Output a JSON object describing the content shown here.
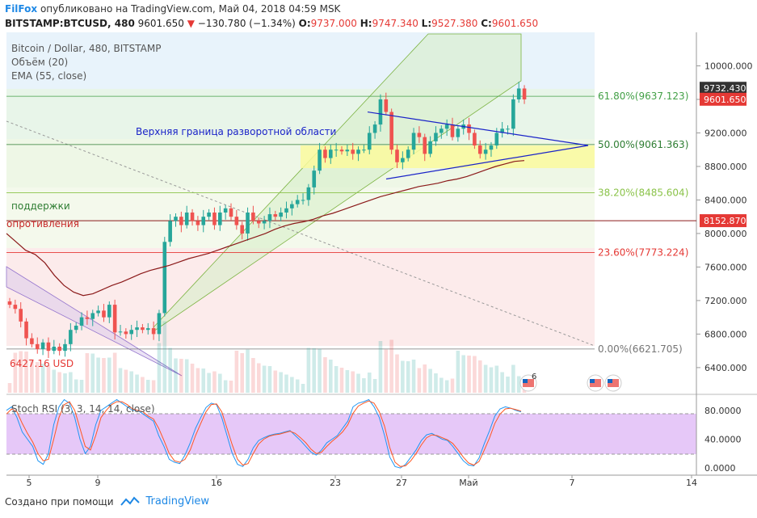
{
  "header": {
    "brand": "FilFox",
    "published": "опубликовано на TradingView.com, Май 04, 2018 04:59 MSK",
    "symbol": "BITSTAMP:BTCUSD, 480",
    "last": "9601.650",
    "change": "−130.780 (−1.34%)",
    "o_label": "O:",
    "o": "9737.000",
    "h_label": "H:",
    "h": "9747.340",
    "l_label": "L:",
    "l": "9527.380",
    "c_label": "C:",
    "c": "9601.650"
  },
  "legend": {
    "title": "Bitcoin / Dollar, 480, BITSTAMP",
    "volume": "Объём (20)",
    "ema": "EMA (55, close)",
    "stoch": "Stoch RSI (3, 3, 14, 14, close)"
  },
  "annotations": {
    "upper_boundary": "Верхняя граница разворотной области",
    "support": "поддержки",
    "resistance": "опротивления",
    "low_price": "6427.16 USD"
  },
  "footer": {
    "created_with": "Создано при помощи",
    "brand": "TradingView"
  },
  "events_badge": "6",
  "colors": {
    "up": "#26a69a",
    "down": "#ef5350",
    "ema": "#8b1a1a",
    "stoch_k": "#2196f3",
    "stoch_d": "#ff5722",
    "fib_618": "#43a047",
    "fib_50": "#2e7d32",
    "fib_382": "#8bc34a",
    "fib_236": "#e53935",
    "fib_0": "#757575",
    "triangle": "#1a23c8",
    "channel": "#7cb342"
  },
  "chart_data": [
    {
      "type": "candlestick",
      "title": "Bitcoin / Dollar, 480, BITSTAMP",
      "x_ticks": [
        "5",
        "9",
        "16",
        "23",
        "27",
        "Май",
        "7",
        "14"
      ],
      "y_ticks": [
        "10000.000",
        "9600.000",
        "9200.000",
        "8800.000",
        "8400.000",
        "8000.000",
        "7600.000",
        "7200.000",
        "6800.000",
        "6400.000"
      ],
      "ylim": [
        6100,
        10400
      ],
      "price_tags": [
        "9732.430",
        "9601.650",
        "8152.870"
      ],
      "fib_levels": [
        {
          "label": "61.80%(9637.123)",
          "value": 9637.123
        },
        {
          "label": "50.00%(9061.363)",
          "value": 9061.363
        },
        {
          "label": "38.20%(8485.604)",
          "value": 8485.604
        },
        {
          "label": "23.60%(7773.224)",
          "value": 7773.224
        },
        {
          "label": "0.00%(6621.705)",
          "value": 6621.705
        }
      ],
      "horizontal_line": 8152.87,
      "closes": [
        7150,
        7100,
        6950,
        6750,
        6680,
        6620,
        6700,
        6600,
        6650,
        6600,
        6680,
        6850,
        6900,
        7000,
        6980,
        7050,
        7080,
        7000,
        7150,
        6820,
        6830,
        6800,
        6850,
        6880,
        6850,
        6870,
        6800,
        7050,
        7900,
        8150,
        8200,
        8100,
        8250,
        8150,
        8100,
        8200,
        8250,
        8100,
        8250,
        8300,
        8200,
        8100,
        8000,
        8250,
        8150,
        8120,
        8150,
        8230,
        8200,
        8250,
        8300,
        8350,
        8400,
        8400,
        8550,
        8750,
        9000,
        8900,
        9000,
        9000,
        8980,
        9000,
        8950,
        9000,
        9000,
        9200,
        9300,
        9600,
        9450,
        9000,
        8850,
        8900,
        9000,
        9200,
        9150,
        8950,
        9100,
        9200,
        9250,
        9300,
        9150,
        9250,
        9300,
        9200,
        9050,
        8950,
        9000,
        9050,
        9200,
        9250,
        9250,
        9600,
        9730,
        9600
      ],
      "ema_55": [
        8000,
        7900,
        7800,
        7750,
        7650,
        7500,
        7380,
        7300,
        7260,
        7280,
        7330,
        7380,
        7420,
        7470,
        7520,
        7560,
        7590,
        7620,
        7660,
        7700,
        7730,
        7760,
        7800,
        7840,
        7880,
        7920,
        7960,
        8000,
        8050,
        8090,
        8120,
        8140,
        8170,
        8210,
        8240,
        8280,
        8320,
        8360,
        8400,
        8440,
        8470,
        8500,
        8530,
        8560,
        8580,
        8600,
        8630,
        8650,
        8680,
        8720,
        8760,
        8800,
        8830,
        8860,
        8870
      ],
      "triangle_upper": [
        [
          9450,
          9300,
          9100
        ]
      ],
      "triangle_lower": [
        [
          8650,
          8900,
          9100
        ]
      ]
    },
    {
      "type": "line",
      "title": "Stoch RSI (3, 3, 14, 14, close)",
      "y_ticks": [
        "80.0000",
        "40.0000",
        "0.0000"
      ],
      "ylim": [
        -10,
        100
      ],
      "band": [
        20,
        80
      ],
      "series": [
        {
          "values": [
            80,
            85,
            70,
            50,
            40,
            30,
            10,
            5,
            20,
            60,
            85,
            95,
            90,
            70,
            40,
            20,
            30,
            60,
            80,
            85,
            90,
            95,
            90,
            85,
            80,
            80,
            75,
            70,
            65,
            45,
            30,
            12,
            8,
            6,
            18,
            35,
            55,
            70,
            84,
            90,
            88,
            70,
            45,
            20,
            5,
            2,
            12,
            28,
            38,
            42,
            45,
            47,
            48,
            50,
            52,
            45,
            38,
            30,
            22,
            18,
            25,
            35,
            40,
            45,
            55,
            65,
            85,
            90,
            92,
            95,
            85,
            70,
            45,
            15,
            2,
            0,
            5,
            15,
            25,
            38,
            46,
            48,
            44,
            40,
            38,
            30,
            20,
            10,
            4,
            3,
            14,
            34,
            52,
            72,
            82,
            85,
            83,
            80,
            78
          ]
        },
        {
          "values": [
            75,
            82,
            78,
            62,
            48,
            36,
            20,
            10,
            12,
            40,
            70,
            88,
            92,
            80,
            55,
            30,
            25,
            45,
            70,
            80,
            88,
            92,
            92,
            88,
            82,
            80,
            78,
            72,
            68,
            55,
            38,
            20,
            10,
            8,
            12,
            25,
            45,
            62,
            78,
            88,
            89,
            78,
            55,
            32,
            12,
            4,
            6,
            20,
            33,
            40,
            44,
            46,
            47,
            49,
            51,
            48,
            42,
            35,
            26,
            20,
            22,
            30,
            37,
            43,
            50,
            60,
            76,
            86,
            90,
            93,
            90,
            78,
            58,
            28,
            8,
            2,
            3,
            10,
            20,
            32,
            42,
            46,
            45,
            42,
            39,
            34,
            25,
            15,
            7,
            4,
            9,
            25,
            42,
            62,
            75,
            82,
            83,
            81,
            79
          ]
        }
      ]
    }
  ]
}
